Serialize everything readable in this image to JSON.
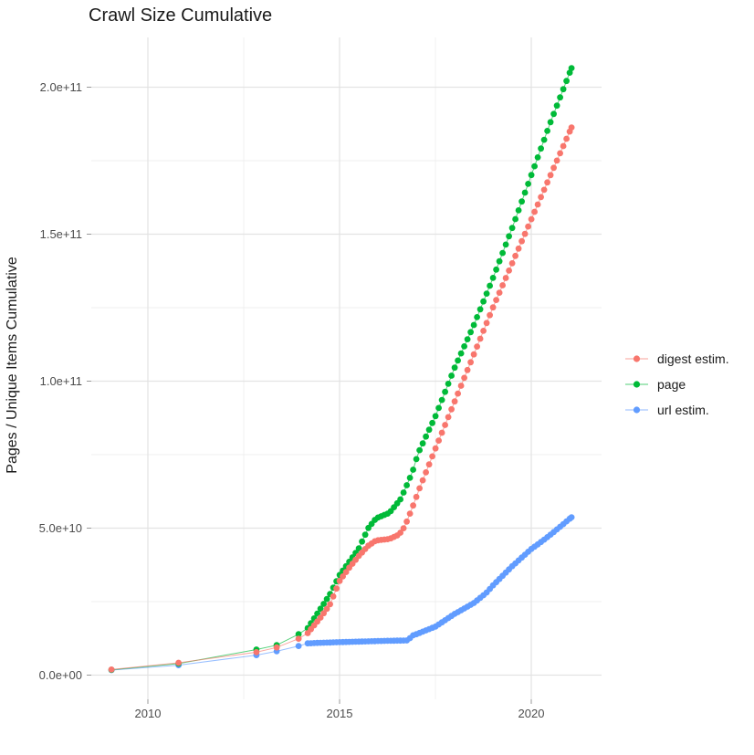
{
  "title": "Crawl Size Cumulative",
  "axes": {
    "y_label": "Pages / Unique Items Cumulative",
    "x_tick_labels": [
      "2010",
      "2015",
      "2020"
    ],
    "y_tick_labels": [
      "0.0e+00",
      "5.0e+10",
      "1.0e+11",
      "1.5e+11",
      "2.0e+11"
    ]
  },
  "legend": {
    "position": "right",
    "entries": [
      "digest estim.",
      "page",
      "url estim."
    ]
  },
  "colors": {
    "digest_estim": "#F8766D",
    "page": "#00BA38",
    "url_estim": "#619CFF",
    "grid_major": "#e3e3e3",
    "grid_minor": "#efefef",
    "tick_mark": "#999999",
    "axis_text": "#4d4d4d",
    "text": "#1a1a1a"
  },
  "chart_data": {
    "type": "line",
    "title": "Crawl Size Cumulative",
    "xlabel": "",
    "ylabel": "Pages / Unique Items Cumulative",
    "grid": true,
    "legend_position": "right",
    "value_unit": "items, values below given in units of 1e9 (billions)",
    "x_axis_years": [
      2010,
      2015,
      2020
    ],
    "x_minor_years": [
      2012.5,
      2017.5
    ],
    "y_tick_values_e9": [
      0,
      50,
      100,
      150,
      200
    ],
    "y_minor_values_e9": [
      25,
      75,
      125,
      175
    ],
    "y_tick_labels": [
      "0.0e+00",
      "5.0e+10",
      "1.0e+11",
      "1.5e+11",
      "2.0e+11"
    ],
    "xlim_years": [
      2008.5,
      2021.8
    ],
    "ylim_e9": [
      -10,
      215
    ],
    "sampling": "sparse crawls at sparse_years, then one point per month from monthly_start to monthly_end; values linearly interpolated between keyframes",
    "sparse_years": [
      2009.05,
      2010.8,
      2012.83,
      2013.36,
      2013.93
    ],
    "monthly_start": 2014.17,
    "monthly_end": 2021.05,
    "series": [
      {
        "name": "digest estim.",
        "color": "#F8766D",
        "keyframes_year_value_e9": [
          [
            2009.05,
            1.9
          ],
          [
            2010.8,
            4.2
          ],
          [
            2012.83,
            7.8
          ],
          [
            2013.36,
            9.4
          ],
          [
            2013.93,
            12.4
          ],
          [
            2014.17,
            14.3
          ],
          [
            2014.5,
            19.5
          ],
          [
            2014.75,
            24
          ],
          [
            2015.0,
            32
          ],
          [
            2015.25,
            36.5
          ],
          [
            2015.5,
            40.5
          ],
          [
            2015.75,
            44
          ],
          [
            2015.95,
            45.8
          ],
          [
            2016.3,
            46.3
          ],
          [
            2016.55,
            47.8
          ],
          [
            2016.7,
            50.5
          ],
          [
            2016.9,
            57
          ],
          [
            2017.1,
            64
          ],
          [
            2017.5,
            77
          ],
          [
            2018.0,
            93
          ],
          [
            2018.5,
            109
          ],
          [
            2019.0,
            125
          ],
          [
            2019.5,
            140
          ],
          [
            2020.0,
            155
          ],
          [
            2020.5,
            170
          ],
          [
            2021.05,
            186.3
          ]
        ]
      },
      {
        "name": "page",
        "color": "#00BA38",
        "keyframes_year_value_e9": [
          [
            2009.05,
            1.8
          ],
          [
            2010.8,
            3.9
          ],
          [
            2012.83,
            8.7
          ],
          [
            2013.36,
            10.2
          ],
          [
            2013.93,
            13.9
          ],
          [
            2014.17,
            16
          ],
          [
            2014.5,
            22.5
          ],
          [
            2014.75,
            27.5
          ],
          [
            2015.0,
            34
          ],
          [
            2015.25,
            38.5
          ],
          [
            2015.5,
            43
          ],
          [
            2015.75,
            50
          ],
          [
            2015.95,
            53.3
          ],
          [
            2016.3,
            55.2
          ],
          [
            2016.6,
            60
          ],
          [
            2016.9,
            69
          ],
          [
            2017.05,
            75.5
          ],
          [
            2017.5,
            88
          ],
          [
            2018.0,
            104.5
          ],
          [
            2018.5,
            119
          ],
          [
            2019.0,
            135
          ],
          [
            2019.5,
            152
          ],
          [
            2020.0,
            170
          ],
          [
            2020.5,
            188
          ],
          [
            2021.05,
            206.5
          ]
        ]
      },
      {
        "name": "url estim.",
        "color": "#619CFF",
        "keyframes_year_value_e9": [
          [
            2009.05,
            1.7
          ],
          [
            2010.8,
            3.4
          ],
          [
            2012.83,
            6.8
          ],
          [
            2013.36,
            8.1
          ],
          [
            2013.93,
            9.9
          ],
          [
            2014.17,
            10.8
          ],
          [
            2014.5,
            11
          ],
          [
            2015.0,
            11.2
          ],
          [
            2015.5,
            11.4
          ],
          [
            2016.0,
            11.6
          ],
          [
            2016.8,
            11.8
          ],
          [
            2016.87,
            13.3
          ],
          [
            2017.0,
            13.9
          ],
          [
            2017.5,
            16.5
          ],
          [
            2018.0,
            20.8
          ],
          [
            2018.5,
            24.5
          ],
          [
            2018.83,
            28
          ],
          [
            2019.0,
            30.5
          ],
          [
            2019.5,
            37
          ],
          [
            2020.0,
            42.9
          ],
          [
            2020.3,
            45.7
          ],
          [
            2020.6,
            48.8
          ],
          [
            2021.05,
            53.7
          ]
        ]
      }
    ]
  }
}
